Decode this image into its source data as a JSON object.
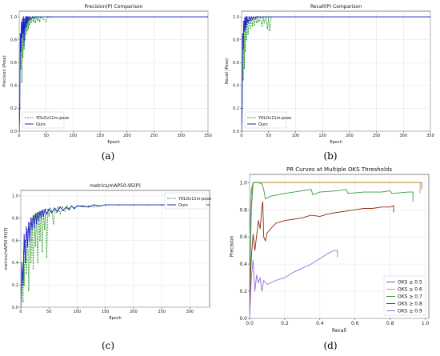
{
  "captions": {
    "a": "(a)",
    "b": "(b)",
    "c": "(c)",
    "d": "(d)"
  },
  "colors": {
    "ours": "#1f1fd0",
    "yolo": "#2ea02e"
  },
  "chart_data": [
    {
      "id": "a",
      "type": "line",
      "title": "Precision(P) Comparison",
      "xlabel": "Epoch",
      "ylabel": "Precision (Pose)",
      "xlim": [
        0,
        350
      ],
      "ylim": [
        0,
        1.05
      ],
      "xticks": [
        "0",
        "50",
        "100",
        "150",
        "200",
        "250",
        "300",
        "350"
      ],
      "yticks": [
        "0.0",
        "0.2",
        "0.4",
        "0.6",
        "0.8",
        "1.0"
      ],
      "legend_position": "lower-left",
      "series": [
        {
          "name": "YOLOv11m-pose",
          "style": "dashed",
          "color": "#2ea02e",
          "x": [
            0,
            1,
            2,
            3,
            4,
            5,
            6,
            7,
            8,
            9,
            10,
            11,
            12,
            13,
            14,
            15,
            16,
            17,
            18,
            19,
            20,
            22,
            24,
            26,
            28,
            30,
            32,
            34,
            36,
            38,
            40,
            45,
            50,
            52,
            55,
            60,
            350
          ],
          "y": [
            0.0,
            0.22,
            0.75,
            0.55,
            0.9,
            0.43,
            0.95,
            0.65,
            0.98,
            0.72,
            0.95,
            0.8,
            0.99,
            0.85,
            1.0,
            0.88,
            1.0,
            0.9,
            1.0,
            0.93,
            1.0,
            0.95,
            1.0,
            0.96,
            1.0,
            0.95,
            1.0,
            0.97,
            1.0,
            0.96,
            1.0,
            0.98,
            0.96,
            1.0,
            1.0,
            1.0,
            1.0
          ]
        },
        {
          "name": "Ours",
          "style": "solid",
          "color": "#1f1fd0",
          "x": [
            0,
            1,
            2,
            3,
            4,
            5,
            6,
            7,
            8,
            9,
            10,
            11,
            12,
            13,
            14,
            15,
            16,
            18,
            20,
            22,
            25,
            28,
            30,
            350
          ],
          "y": [
            0.0,
            0.2,
            0.85,
            0.7,
            0.95,
            0.82,
            0.98,
            0.86,
            1.0,
            0.75,
            0.98,
            0.9,
            1.0,
            0.92,
            1.0,
            0.95,
            1.0,
            0.97,
            1.0,
            0.98,
            1.0,
            0.99,
            1.0,
            1.0
          ]
        }
      ]
    },
    {
      "id": "b",
      "type": "line",
      "title": "Recall(P) Comparison",
      "xlabel": "Epoch",
      "ylabel": "Recall (Pose)",
      "xlim": [
        0,
        350
      ],
      "ylim": [
        0,
        1.05
      ],
      "xticks": [
        "0",
        "50",
        "100",
        "150",
        "200",
        "250",
        "300",
        "350"
      ],
      "yticks": [
        "0.0",
        "0.2",
        "0.4",
        "0.6",
        "0.8",
        "1.0"
      ],
      "legend_position": "lower-left",
      "series": [
        {
          "name": "YOLOv11m-pose",
          "style": "dashed",
          "color": "#2ea02e",
          "x": [
            0,
            1,
            2,
            3,
            4,
            5,
            6,
            7,
            8,
            9,
            10,
            12,
            14,
            16,
            18,
            20,
            22,
            24,
            26,
            28,
            30,
            32,
            35,
            38,
            40,
            42,
            45,
            48,
            50,
            52,
            55,
            350
          ],
          "y": [
            0.0,
            0.25,
            0.78,
            0.45,
            0.92,
            0.55,
            0.96,
            0.7,
            0.98,
            0.8,
            1.0,
            0.85,
            1.0,
            0.9,
            1.0,
            0.92,
            1.0,
            0.93,
            1.0,
            0.95,
            1.0,
            0.96,
            1.0,
            0.92,
            1.0,
            0.95,
            1.0,
            0.9,
            1.0,
            0.88,
            1.0,
            1.0
          ]
        },
        {
          "name": "Ours",
          "style": "solid",
          "color": "#1f1fd0",
          "x": [
            0,
            1,
            2,
            3,
            4,
            5,
            6,
            7,
            8,
            9,
            10,
            12,
            14,
            16,
            18,
            20,
            22,
            25,
            28,
            30,
            350
          ],
          "y": [
            0.0,
            0.2,
            0.85,
            0.72,
            0.96,
            0.88,
            0.99,
            0.9,
            1.0,
            0.93,
            1.0,
            0.95,
            1.0,
            0.97,
            1.0,
            0.98,
            1.0,
            0.99,
            1.0,
            1.0,
            1.0
          ]
        }
      ]
    },
    {
      "id": "c",
      "type": "line",
      "title": "metrics/mAP50-95(P)",
      "xlabel": "Epoch",
      "ylabel": "metrics/mAP50-95(P)",
      "xlim": [
        0,
        335
      ],
      "ylim": [
        0,
        1.05
      ],
      "xticks": [
        "0",
        "50",
        "100",
        "150",
        "200",
        "250",
        "300"
      ],
      "yticks": [
        "0.0",
        "0.2",
        "0.4",
        "0.6",
        "0.8",
        "1.0"
      ],
      "legend_position": "upper-right",
      "series": [
        {
          "name": "YOLOv11m-pose",
          "style": "dashed",
          "color": "#2ea02e",
          "x": [
            0,
            2,
            4,
            5,
            6,
            8,
            10,
            12,
            14,
            16,
            18,
            20,
            22,
            24,
            26,
            28,
            30,
            32,
            34,
            36,
            38,
            40,
            42,
            44,
            46,
            48,
            50,
            52,
            55,
            58,
            60,
            63,
            66,
            70,
            74,
            78,
            82,
            86,
            90,
            95,
            100,
            110,
            120,
            130,
            140,
            150,
            175,
            200,
            225,
            250,
            275,
            300,
            335
          ],
          "y": [
            0.0,
            0.3,
            0.05,
            0.5,
            0.2,
            0.6,
            0.3,
            0.7,
            0.15,
            0.75,
            0.4,
            0.8,
            0.35,
            0.82,
            0.55,
            0.84,
            0.4,
            0.85,
            0.6,
            0.86,
            0.5,
            0.87,
            0.7,
            0.88,
            0.45,
            0.88,
            0.82,
            0.89,
            0.86,
            0.75,
            0.89,
            0.85,
            0.9,
            0.84,
            0.9,
            0.86,
            0.91,
            0.87,
            0.91,
            0.88,
            0.91,
            0.9,
            0.91,
            0.9,
            0.91,
            0.92,
            0.92,
            0.92,
            0.92,
            0.92,
            0.92,
            0.92,
            0.92
          ]
        },
        {
          "name": "Ours",
          "style": "solid",
          "color": "#1f1fd0",
          "x": [
            0,
            2,
            4,
            6,
            8,
            10,
            12,
            14,
            16,
            18,
            20,
            22,
            24,
            26,
            28,
            30,
            32,
            34,
            36,
            38,
            40,
            43,
            46,
            50,
            55,
            60,
            65,
            70,
            75,
            80,
            85,
            90,
            95,
            100,
            110,
            120,
            130,
            140,
            150,
            175,
            200,
            225,
            250,
            275,
            300,
            335
          ],
          "y": [
            0.0,
            0.4,
            0.2,
            0.65,
            0.4,
            0.72,
            0.55,
            0.76,
            0.6,
            0.8,
            0.7,
            0.82,
            0.72,
            0.84,
            0.75,
            0.85,
            0.78,
            0.86,
            0.8,
            0.87,
            0.82,
            0.88,
            0.84,
            0.88,
            0.85,
            0.89,
            0.86,
            0.9,
            0.87,
            0.9,
            0.88,
            0.91,
            0.89,
            0.91,
            0.91,
            0.9,
            0.92,
            0.91,
            0.92,
            0.92,
            0.92,
            0.92,
            0.92,
            0.92,
            0.92,
            0.92
          ]
        }
      ]
    },
    {
      "id": "d",
      "type": "line",
      "title": "PR Curves at Multiple OKS Thresholds",
      "xlabel": "Recall",
      "ylabel": "Precision",
      "xlim": [
        0,
        1.02
      ],
      "ylim": [
        0,
        1.06
      ],
      "xticks": [
        "0.0",
        "0.2",
        "0.4",
        "0.6",
        "0.8",
        "1.0"
      ],
      "yticks": [
        "0.0",
        "0.2",
        "0.4",
        "0.6",
        "0.8",
        "1.0"
      ],
      "legend_position": "lower-right",
      "series": [
        {
          "name": "OKS ≥ 0.5",
          "color": "#4a6fb5",
          "x": [
            0.0,
            0.0,
            0.01,
            0.02,
            0.6,
            0.98,
            0.98
          ],
          "y": [
            0.0,
            0.6,
            0.95,
            1.0,
            1.0,
            1.0,
            0.95
          ]
        },
        {
          "name": "OKS ≥ 0.6",
          "color": "#d4a017",
          "x": [
            0.0,
            0.005,
            0.01,
            0.02,
            0.97,
            0.97
          ],
          "y": [
            0.0,
            0.5,
            0.9,
            1.0,
            1.0,
            0.92
          ]
        },
        {
          "name": "OKS ≥ 0.7",
          "color": "#3a9a3a",
          "x": [
            0.0,
            0.005,
            0.01,
            0.02,
            0.05,
            0.07,
            0.08,
            0.09,
            0.12,
            0.2,
            0.3,
            0.35,
            0.36,
            0.4,
            0.5,
            0.55,
            0.56,
            0.65,
            0.75,
            0.8,
            0.81,
            0.9,
            0.93,
            0.93
          ],
          "y": [
            0.0,
            0.5,
            0.8,
            1.0,
            1.0,
            0.99,
            0.95,
            0.88,
            0.9,
            0.92,
            0.94,
            0.95,
            0.91,
            0.93,
            0.94,
            0.95,
            0.92,
            0.93,
            0.93,
            0.94,
            0.92,
            0.93,
            0.93,
            0.86
          ]
        },
        {
          "name": "OKS ≥ 0.8",
          "color": "#8b2a14",
          "x": [
            0.0,
            0.005,
            0.01,
            0.02,
            0.03,
            0.05,
            0.06,
            0.07,
            0.075,
            0.08,
            0.09,
            0.1,
            0.12,
            0.15,
            0.2,
            0.25,
            0.3,
            0.35,
            0.4,
            0.45,
            0.5,
            0.55,
            0.6,
            0.65,
            0.7,
            0.75,
            0.8,
            0.82,
            0.82
          ],
          "y": [
            0.0,
            0.3,
            0.45,
            0.62,
            0.5,
            0.72,
            0.66,
            0.82,
            0.86,
            0.6,
            0.57,
            0.63,
            0.66,
            0.7,
            0.72,
            0.73,
            0.74,
            0.76,
            0.75,
            0.77,
            0.78,
            0.79,
            0.8,
            0.81,
            0.81,
            0.82,
            0.82,
            0.83,
            0.78
          ]
        },
        {
          "name": "OKS ≥ 0.9",
          "color": "#9370db",
          "x": [
            0.0,
            0.01,
            0.02,
            0.03,
            0.04,
            0.05,
            0.06,
            0.07,
            0.08,
            0.1,
            0.15,
            0.2,
            0.25,
            0.3,
            0.35,
            0.4,
            0.45,
            0.48,
            0.5,
            0.5
          ],
          "y": [
            0.0,
            0.3,
            0.43,
            0.2,
            0.32,
            0.26,
            0.3,
            0.2,
            0.28,
            0.25,
            0.28,
            0.3,
            0.34,
            0.37,
            0.4,
            0.44,
            0.48,
            0.5,
            0.5,
            0.45
          ]
        }
      ]
    }
  ]
}
